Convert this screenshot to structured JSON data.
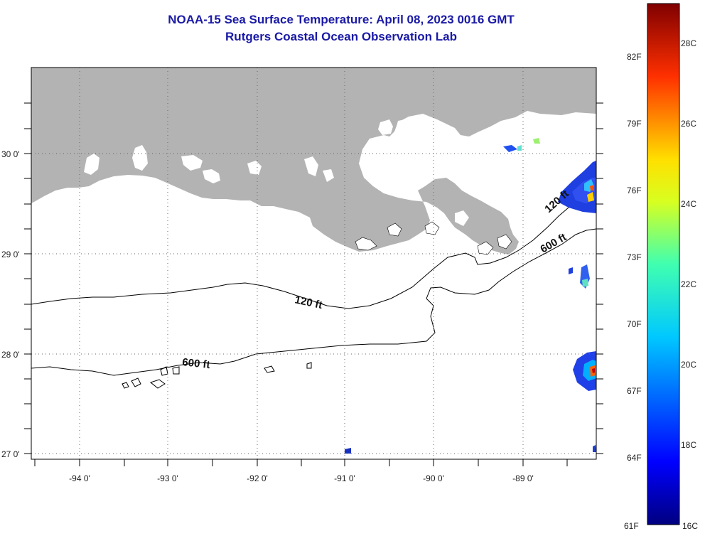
{
  "title": {
    "line1": "NOAA-15 Sea Surface Temperature:  April 08, 2023 0016 GMT",
    "line2": "Rutgers Coastal Ocean Observation Lab"
  },
  "map": {
    "longitude_labels": [
      "-94 0'",
      "-93 0'",
      "-92 0'",
      "-91 0'",
      "-90 0'",
      "-89 0'"
    ],
    "latitude_labels": [
      "30 0'",
      "29 0'",
      "28 0'",
      "27 0'"
    ],
    "contour_labels": [
      "120 ft",
      "600 ft",
      "600 ft",
      "120 ft"
    ],
    "colors": {
      "land": "#b3b3b3",
      "water": "#ffffff",
      "grid": "#555555",
      "title": "#1a1aa6"
    }
  },
  "colorbar": {
    "fahrenheit_labels": [
      "82F",
      "79F",
      "76F",
      "73F",
      "70F",
      "67F",
      "64F",
      "61F"
    ],
    "celsius_labels": [
      "28C",
      "26C",
      "24C",
      "22C",
      "20C",
      "18C",
      "16C"
    ],
    "colormap": "jet"
  }
}
